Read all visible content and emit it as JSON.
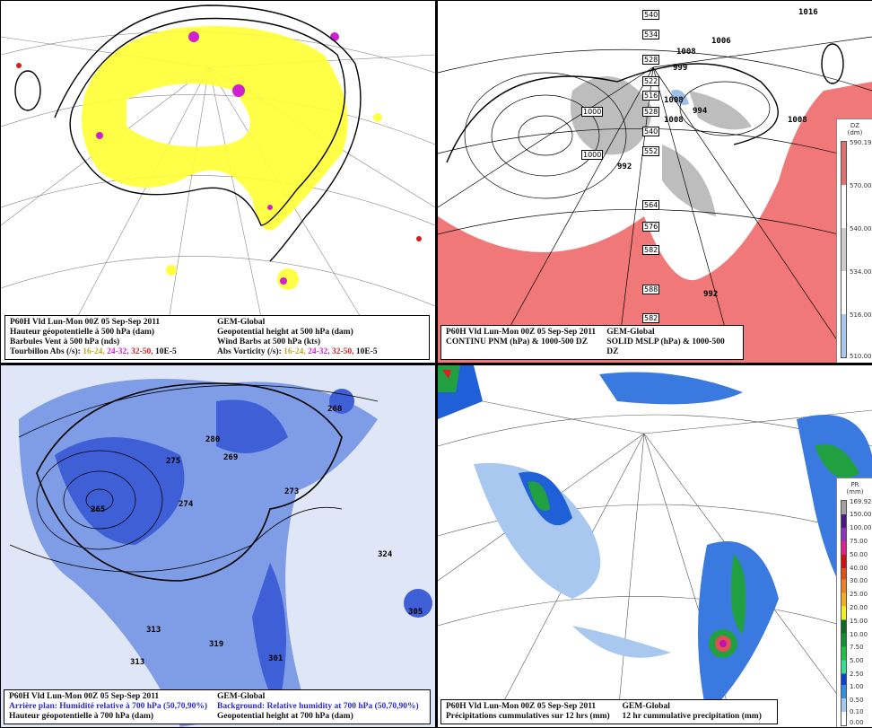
{
  "panels": {
    "p500": {
      "caption": {
        "line1_fr": "P60H Vld Lun-Mon 00Z 05 Sep-Sep 2011",
        "line1_en": "GEM-Global",
        "line2_fr": "Hauteur géopotentielle à 500 hPa (dam)",
        "line2_en": "Geopotential height at 500 hPa (dam)",
        "line3_fr": "Barbules Vent à 500 hPa (nds)",
        "line3_en": "Wind Barbs at 500 hPa  (kts)",
        "line4_fr": "Tourbillon Abs (/s):",
        "line4_en": "Abs Vorticity (/s):",
        "ranges": [
          "16-24,",
          "24-32,",
          "32-50,"
        ],
        "units": "10E-5"
      },
      "colors": {
        "vort1": "#ffff00",
        "vort2": "#d020d0",
        "vort3": "#d02020"
      }
    },
    "mslp": {
      "caption": {
        "line1_fr": "P60H Vld Lun-Mon 00Z 05 Sep-Sep 2011",
        "line1_en": "GEM-Global",
        "line2_fr": "CONTINU PNM  (hPa) & 1000-500 DZ",
        "line2_en": "SOLID   MSLP (hPa) & 1000-500 DZ"
      },
      "thickness_labels": [
        "540",
        "534",
        "528",
        "522",
        "516",
        "528",
        "540",
        "552",
        "564",
        "576",
        "582",
        "588",
        "582"
      ],
      "pressure_labels": [
        "1016",
        "1006",
        "1008",
        "999",
        "1008",
        "994",
        "1008",
        "1000",
        "1000",
        "992",
        "1008",
        "992"
      ],
      "legend": {
        "title": "DZ",
        "units": "(dm)",
        "ticks": [
          "590.19",
          "570.00",
          "540.00",
          "534.00",
          "516.00",
          "510.00"
        ]
      }
    },
    "rh700": {
      "caption": {
        "line1_fr": "P60H Vld Lun-Mon 00Z 05 Sep-Sep 2011",
        "line1_en": "GEM-Global",
        "line2_fr": "Arrière plan: Humidité relative à 700 hPa (50,70,90%)",
        "line2_en": "Background: Relative humidity at 700 hPa (50,70,90%)",
        "line3_fr": "Hauteur géopotentielle à 700 hPa (dam)",
        "line3_en": "Geopotential height at 700 hPa (dam)"
      },
      "height_labels": [
        "265",
        "275",
        "274",
        "280",
        "269",
        "273",
        "268",
        "324",
        "305",
        "313",
        "313",
        "319",
        "301"
      ]
    },
    "precip": {
      "caption": {
        "line1_fr": "P60H Vld Lun-Mon 00Z 05 Sep-Sep 2011",
        "line1_en": "GEM-Global",
        "line2_fr": "Précipitations cummulatives sur 12 hrs (mm)",
        "line2_en": "12 hr cummulative precipitation      (mm)"
      },
      "legend": {
        "title": "PR",
        "units": "(mm)",
        "ticks": [
          "169.92",
          "150.00",
          "100.00",
          "75.00",
          "50.00",
          "40.00",
          "30.00",
          "25.00",
          "20.00",
          "15.00",
          "10.00",
          "7.50",
          "5.00",
          "2.50",
          "1.00",
          "0.50",
          "0.10",
          "0.00"
        ]
      }
    }
  }
}
